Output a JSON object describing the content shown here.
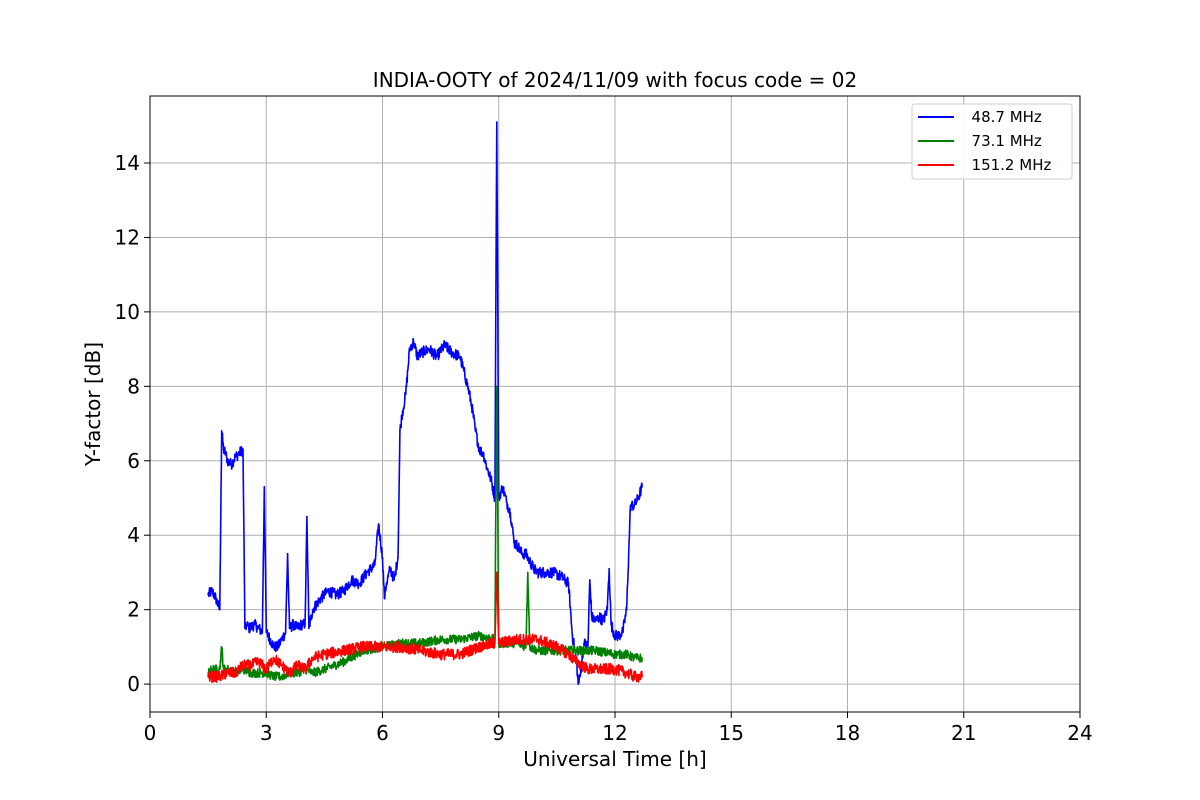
{
  "chart_data": {
    "type": "line",
    "title": "INDIA-OOTY of 2024/11/09 with focus code = 02",
    "xlabel": "Universal Time [h]",
    "ylabel": "Y-factor [dB]",
    "xlim": [
      0,
      24
    ],
    "ylim": [
      -0.75,
      15.8
    ],
    "xticks": [
      0,
      3,
      6,
      9,
      12,
      15,
      18,
      21,
      24
    ],
    "yticks": [
      0,
      2,
      4,
      6,
      8,
      10,
      12,
      14
    ],
    "grid": true,
    "legend_position": "top-right",
    "series": [
      {
        "name": "  48.7 MHz",
        "color": "#0000ff",
        "x": [
          1.5,
          1.6,
          1.7,
          1.8,
          1.85,
          1.9,
          1.95,
          2.0,
          2.1,
          2.2,
          2.3,
          2.4,
          2.45,
          2.5,
          2.55,
          2.7,
          2.9,
          2.95,
          3.0,
          3.1,
          3.2,
          3.3,
          3.4,
          3.5,
          3.55,
          3.6,
          3.7,
          3.8,
          3.9,
          4.0,
          4.05,
          4.1,
          4.2,
          4.4,
          4.6,
          4.8,
          5.0,
          5.2,
          5.4,
          5.6,
          5.8,
          5.9,
          6.0,
          6.05,
          6.1,
          6.2,
          6.3,
          6.4,
          6.45,
          6.5,
          6.6,
          6.7,
          6.8,
          6.9,
          7.0,
          7.2,
          7.4,
          7.6,
          7.8,
          8.0,
          8.2,
          8.3,
          8.4,
          8.5,
          8.6,
          8.7,
          8.8,
          8.9,
          8.95,
          9.0,
          9.1,
          9.2,
          9.3,
          9.4,
          9.5,
          9.6,
          9.7,
          9.8,
          9.9,
          10.0,
          10.2,
          10.4,
          10.6,
          10.8,
          10.9,
          11.0,
          11.05,
          11.1,
          11.2,
          11.3,
          11.35,
          11.4,
          11.5,
          11.6,
          11.7,
          11.8,
          11.85,
          11.9,
          12.0,
          12.1,
          12.2,
          12.3,
          12.4,
          12.5,
          12.6,
          12.7
        ],
        "values": [
          2.4,
          2.5,
          2.3,
          2.0,
          6.8,
          6.3,
          6.2,
          6.0,
          5.9,
          6.1,
          6.2,
          6.3,
          1.5,
          1.6,
          1.5,
          1.6,
          1.4,
          5.3,
          1.4,
          1.2,
          1.0,
          1.0,
          1.2,
          1.4,
          3.5,
          1.5,
          1.6,
          1.5,
          1.6,
          1.6,
          4.5,
          1.5,
          2.0,
          2.3,
          2.5,
          2.4,
          2.5,
          2.8,
          2.7,
          3.0,
          3.2,
          4.3,
          3.4,
          2.3,
          2.7,
          3.1,
          2.8,
          3.4,
          6.8,
          7.2,
          7.8,
          9.0,
          9.2,
          8.8,
          8.9,
          9.0,
          8.8,
          9.1,
          8.9,
          8.8,
          8.0,
          7.5,
          6.8,
          6.3,
          6.2,
          5.8,
          5.5,
          5.0,
          15.1,
          5.0,
          5.3,
          4.9,
          4.6,
          3.8,
          3.7,
          3.5,
          3.5,
          3.3,
          3.1,
          3.0,
          3.0,
          3.0,
          2.9,
          2.7,
          1.3,
          0.7,
          0.0,
          0.2,
          1.1,
          1.0,
          2.8,
          1.8,
          1.7,
          1.8,
          1.7,
          2.0,
          3.1,
          1.6,
          1.3,
          1.3,
          1.4,
          2.0,
          4.8,
          4.8,
          5.0,
          5.3
        ],
        "noise": 0.15
      },
      {
        "name": "  73.1 MHz",
        "color": "#008000",
        "x": [
          1.5,
          1.6,
          1.8,
          1.85,
          1.9,
          2.0,
          2.2,
          2.4,
          2.6,
          2.8,
          3.0,
          3.2,
          3.4,
          3.6,
          3.8,
          4.0,
          4.2,
          4.5,
          5.0,
          5.5,
          6.0,
          6.5,
          7.0,
          7.5,
          8.0,
          8.5,
          8.9,
          8.95,
          9.0,
          9.2,
          9.5,
          9.7,
          9.75,
          9.8,
          10.0,
          10.5,
          11.0,
          11.5,
          12.0,
          12.3,
          12.5,
          12.7
        ],
        "values": [
          0.3,
          0.4,
          0.4,
          1.0,
          0.4,
          0.4,
          0.3,
          0.4,
          0.3,
          0.3,
          0.3,
          0.2,
          0.2,
          0.3,
          0.3,
          0.4,
          0.3,
          0.4,
          0.6,
          0.9,
          1.0,
          1.1,
          1.1,
          1.2,
          1.2,
          1.3,
          1.2,
          8.0,
          1.1,
          1.1,
          1.1,
          1.0,
          3.0,
          1.0,
          0.9,
          0.9,
          0.9,
          0.9,
          0.8,
          0.8,
          0.7,
          0.7
        ],
        "noise": 0.12
      },
      {
        "name": "  151.2 MHz",
        "color": "#ff0000",
        "x": [
          1.5,
          1.8,
          2.0,
          2.2,
          2.4,
          2.6,
          2.8,
          3.0,
          3.2,
          3.4,
          3.6,
          3.8,
          4.0,
          4.2,
          4.5,
          5.0,
          5.5,
          6.0,
          6.5,
          7.0,
          7.5,
          8.0,
          8.5,
          8.9,
          8.95,
          9.0,
          9.5,
          10.0,
          10.5,
          10.8,
          11.0,
          11.3,
          11.6,
          12.0,
          12.3,
          12.5,
          12.7
        ],
        "values": [
          0.2,
          0.2,
          0.3,
          0.3,
          0.5,
          0.5,
          0.6,
          0.4,
          0.7,
          0.5,
          0.3,
          0.5,
          0.4,
          0.7,
          0.8,
          0.9,
          1.0,
          1.0,
          1.0,
          0.9,
          0.8,
          0.8,
          1.0,
          1.1,
          3.0,
          1.1,
          1.2,
          1.2,
          1.0,
          0.8,
          0.6,
          0.4,
          0.4,
          0.4,
          0.3,
          0.2,
          0.2
        ],
        "noise": 0.15
      }
    ]
  }
}
